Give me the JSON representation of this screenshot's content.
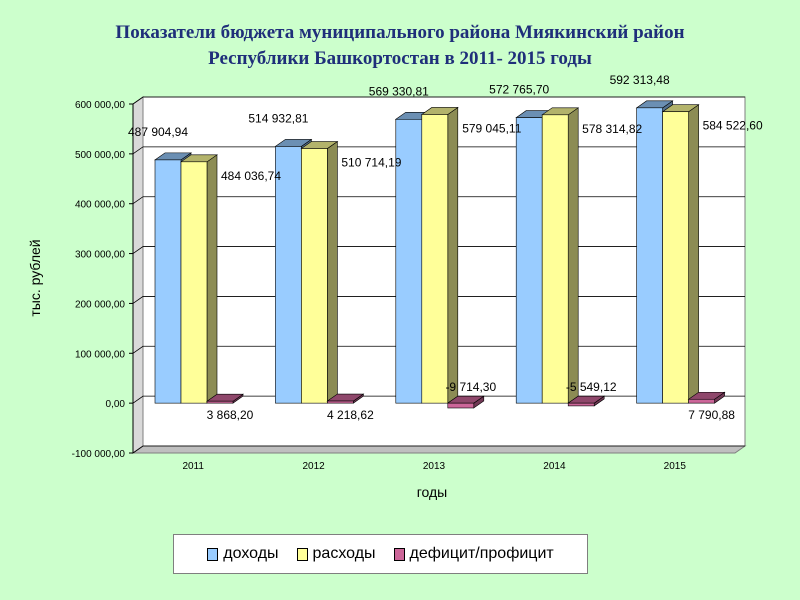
{
  "page": {
    "title_line1": "Показатели бюджета муниципального района Миякинский район",
    "title_line2": "Республики Башкортостан  в 2011- 2015 годы"
  },
  "chart_data": {
    "type": "bar",
    "title": "Показатели бюджета муниципального района Миякинский район Республики Башкортостан  в 2011- 2015 годы",
    "xlabel": "годы",
    "ylabel": "тыс. рублей",
    "ylim": [
      -100000,
      600000
    ],
    "yticks": [
      -100000,
      0,
      100000,
      200000,
      300000,
      400000,
      500000,
      600000
    ],
    "ytick_labels": [
      "-100 000,00",
      "0,00",
      "100 000,00",
      "200 000,00",
      "300 000,00",
      "400 000,00",
      "500 000,00",
      "600 000,00"
    ],
    "grid": true,
    "legend_position": "bottom",
    "categories": [
      "2011",
      "2012",
      "2013",
      "2014",
      "2015"
    ],
    "series": [
      {
        "name": "доходы",
        "color": "#99ccff",
        "values": [
          487904.94,
          514932.81,
          569330.81,
          572765.7,
          592313.48
        ],
        "labels": [
          "487 904,94",
          "514 932,81",
          "569 330,81",
          "572 765,70",
          "592 313,48"
        ]
      },
      {
        "name": "расходы",
        "color": "#ffff99",
        "values": [
          484036.74,
          510714.19,
          579045.11,
          578314.82,
          584522.6
        ],
        "labels": [
          "484 036,74",
          "510 714,19",
          "579 045,11",
          "578 314,82",
          "584 522,60"
        ]
      },
      {
        "name": "дефицит/профицит",
        "color": "#cc6699",
        "values": [
          3868.2,
          4218.62,
          -9714.3,
          -5549.12,
          7790.88
        ],
        "labels": [
          "3 868,20",
          "4 218,62",
          "-9 714,30",
          "-5 549,12",
          "7 790,88"
        ]
      }
    ]
  }
}
